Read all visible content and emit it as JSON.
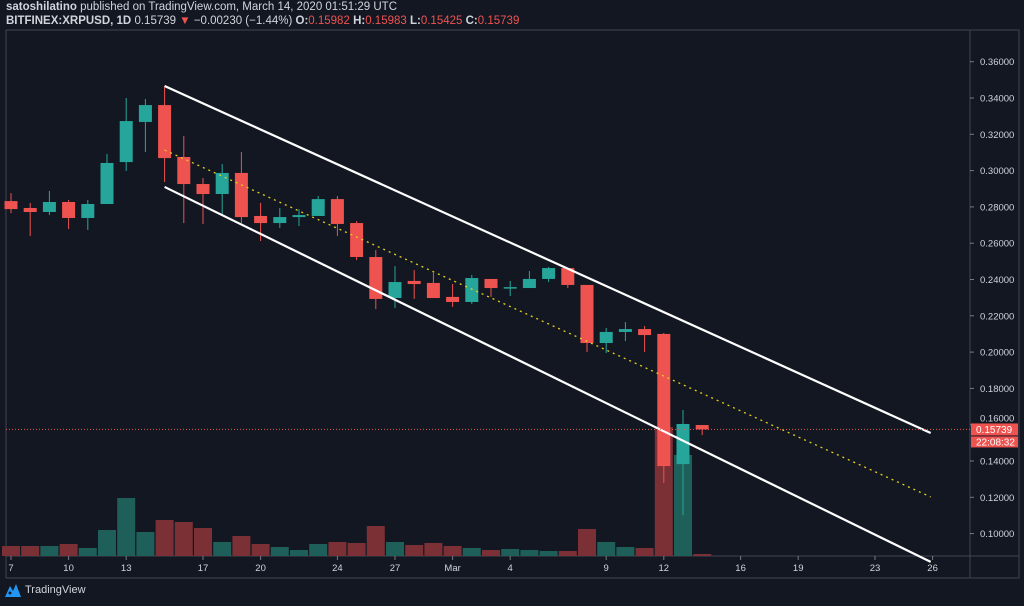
{
  "header": {
    "author": "satoshilatino",
    "published_text": "published on TradingView.com, March 14, 2020 01:51:29 UTC",
    "symbol": "BITFINEX:XRPUSD, 1D",
    "last": "0.15739",
    "change_arrow": "down-triangle-icon",
    "change": "−0.00230 (−1.44%)",
    "o_label": "O:",
    "o": "0.15982",
    "h_label": "H:",
    "h": "0.15983",
    "l_label": "L:",
    "l": "0.15425",
    "c_label": "C:",
    "c": "0.15739"
  },
  "price_label": "0.15739",
  "countdown": "22:08:32",
  "branding": "TradingView",
  "colors": {
    "background": "#131722",
    "up": "#26a69a",
    "down": "#ef5350",
    "up_volume": "#1f5f5a",
    "down_volume": "#7a3035",
    "channel": "#ffffff",
    "midline": "#e5d11a",
    "price_line": "#ef5350"
  },
  "chart_data": {
    "type": "candlestick",
    "title": "",
    "y_ticks": [
      "0.36000",
      "0.34000",
      "0.32000",
      "0.30000",
      "0.28000",
      "0.26000",
      "0.24000",
      "0.22000",
      "0.20000",
      "0.18000",
      "0.16000",
      "0.14000",
      "0.12000",
      "0.10000"
    ],
    "ylim": [
      0.085,
      0.375
    ],
    "x_ticks": [
      {
        "day": 0,
        "label": "7"
      },
      {
        "day": 3,
        "label": "10"
      },
      {
        "day": 6,
        "label": "13"
      },
      {
        "day": 10,
        "label": "17"
      },
      {
        "day": 13,
        "label": "20"
      },
      {
        "day": 17,
        "label": "24"
      },
      {
        "day": 20,
        "label": "27"
      },
      {
        "day": 23,
        "label": "Mar"
      },
      {
        "day": 26,
        "label": "4"
      },
      {
        "day": 31,
        "label": "9"
      },
      {
        "day": 34,
        "label": "12"
      },
      {
        "day": 38,
        "label": "16"
      },
      {
        "day": 41,
        "label": "19"
      },
      {
        "day": 45,
        "label": "23"
      },
      {
        "day": 48,
        "label": "26"
      }
    ],
    "x_start_date": "2020-02-07",
    "candles": [
      {
        "date": "Feb 7",
        "o": 0.2832,
        "h": 0.2876,
        "l": 0.2766,
        "c": 0.2788,
        "v": 10
      },
      {
        "date": "Feb 8",
        "o": 0.2794,
        "h": 0.2822,
        "l": 0.264,
        "c": 0.2772,
        "v": 10
      },
      {
        "date": "Feb 9",
        "o": 0.2772,
        "h": 0.2888,
        "l": 0.2755,
        "c": 0.2827,
        "v": 10
      },
      {
        "date": "Feb 10",
        "o": 0.2827,
        "h": 0.2838,
        "l": 0.2678,
        "c": 0.2739,
        "v": 12
      },
      {
        "date": "Feb 11",
        "o": 0.2739,
        "h": 0.2838,
        "l": 0.2673,
        "c": 0.2816,
        "v": 8
      },
      {
        "date": "Feb 12",
        "o": 0.2816,
        "h": 0.3092,
        "l": 0.2816,
        "c": 0.3042,
        "v": 26
      },
      {
        "date": "Feb 13",
        "o": 0.3047,
        "h": 0.34,
        "l": 0.2998,
        "c": 0.3273,
        "v": 58
      },
      {
        "date": "Feb 14",
        "o": 0.3268,
        "h": 0.3394,
        "l": 0.3102,
        "c": 0.3361,
        "v": 24
      },
      {
        "date": "Feb 15",
        "o": 0.3361,
        "h": 0.3466,
        "l": 0.2937,
        "c": 0.3069,
        "v": 36
      },
      {
        "date": "Feb 16",
        "o": 0.3075,
        "h": 0.3191,
        "l": 0.2711,
        "c": 0.2926,
        "v": 34
      },
      {
        "date": "Feb 17",
        "o": 0.2926,
        "h": 0.2959,
        "l": 0.2706,
        "c": 0.2871,
        "v": 28
      },
      {
        "date": "Feb 18",
        "o": 0.2871,
        "h": 0.3036,
        "l": 0.2761,
        "c": 0.2987,
        "v": 14
      },
      {
        "date": "Feb 19",
        "o": 0.2987,
        "h": 0.3102,
        "l": 0.2711,
        "c": 0.2744,
        "v": 20
      },
      {
        "date": "Feb 20",
        "o": 0.275,
        "h": 0.2822,
        "l": 0.2612,
        "c": 0.2711,
        "v": 12
      },
      {
        "date": "Feb 21",
        "o": 0.2711,
        "h": 0.2794,
        "l": 0.2684,
        "c": 0.2744,
        "v": 9
      },
      {
        "date": "Feb 22",
        "o": 0.2744,
        "h": 0.2788,
        "l": 0.2695,
        "c": 0.2755,
        "v": 6
      },
      {
        "date": "Feb 23",
        "o": 0.275,
        "h": 0.286,
        "l": 0.275,
        "c": 0.2843,
        "v": 12
      },
      {
        "date": "Feb 24",
        "o": 0.2843,
        "h": 0.286,
        "l": 0.264,
        "c": 0.2706,
        "v": 14
      },
      {
        "date": "Feb 25",
        "o": 0.2711,
        "h": 0.2722,
        "l": 0.2507,
        "c": 0.2524,
        "v": 13
      },
      {
        "date": "Feb 26",
        "o": 0.2524,
        "h": 0.2562,
        "l": 0.2237,
        "c": 0.2293,
        "v": 30
      },
      {
        "date": "Feb 27",
        "o": 0.2298,
        "h": 0.2474,
        "l": 0.2243,
        "c": 0.2386,
        "v": 14
      },
      {
        "date": "Feb 28",
        "o": 0.2392,
        "h": 0.2452,
        "l": 0.2293,
        "c": 0.2375,
        "v": 11
      },
      {
        "date": "Feb 29",
        "o": 0.2381,
        "h": 0.2436,
        "l": 0.2298,
        "c": 0.2298,
        "v": 13
      },
      {
        "date": "Mar 1",
        "o": 0.2304,
        "h": 0.2375,
        "l": 0.2249,
        "c": 0.2276,
        "v": 10
      },
      {
        "date": "Mar 2",
        "o": 0.2276,
        "h": 0.2425,
        "l": 0.2265,
        "c": 0.2408,
        "v": 8
      },
      {
        "date": "Mar 3",
        "o": 0.2403,
        "h": 0.2403,
        "l": 0.2304,
        "c": 0.2353,
        "v": 6
      },
      {
        "date": "Mar 4",
        "o": 0.2353,
        "h": 0.2392,
        "l": 0.2309,
        "c": 0.2358,
        "v": 7
      },
      {
        "date": "Mar 5",
        "o": 0.2353,
        "h": 0.2447,
        "l": 0.2353,
        "c": 0.2403,
        "v": 6
      },
      {
        "date": "Mar 6",
        "o": 0.2403,
        "h": 0.2469,
        "l": 0.2386,
        "c": 0.2463,
        "v": 5
      },
      {
        "date": "Mar 7",
        "o": 0.2463,
        "h": 0.2463,
        "l": 0.2353,
        "c": 0.237,
        "v": 5
      },
      {
        "date": "Mar 8",
        "o": 0.237,
        "h": 0.237,
        "l": 0.2,
        "c": 0.205,
        "v": 27
      },
      {
        "date": "Mar 9",
        "o": 0.205,
        "h": 0.2133,
        "l": 0.1995,
        "c": 0.2111,
        "v": 14
      },
      {
        "date": "Mar 10",
        "o": 0.2111,
        "h": 0.2166,
        "l": 0.2061,
        "c": 0.2127,
        "v": 9
      },
      {
        "date": "Mar 11",
        "o": 0.2127,
        "h": 0.2144,
        "l": 0.2,
        "c": 0.2094,
        "v": 8
      },
      {
        "date": "Mar 12",
        "o": 0.21,
        "h": 0.2105,
        "l": 0.1279,
        "c": 0.1372,
        "v": 129
      },
      {
        "date": "Mar 13",
        "o": 0.1383,
        "h": 0.1681,
        "l": 0.1102,
        "c": 0.1604,
        "v": 101
      },
      {
        "date": "Mar 14",
        "o": 0.15982,
        "h": 0.15983,
        "l": 0.15425,
        "c": 0.15739,
        "v": 2
      }
    ],
    "drawings": [
      {
        "name": "upper-channel",
        "style": "solid",
        "from": {
          "day": 8,
          "price": 0.3466
        },
        "to": {
          "day": 47.9,
          "price": 0.1554
        }
      },
      {
        "name": "lower-channel",
        "style": "solid",
        "from": {
          "day": 8,
          "price": 0.291
        },
        "to": {
          "day": 47.9,
          "price": 0.0844
        }
      },
      {
        "name": "midline",
        "style": "dotted",
        "from": {
          "day": 8,
          "price": 0.3113
        },
        "to": {
          "day": 47.9,
          "price": 0.1202
        }
      }
    ],
    "current_price": 0.15739,
    "grid": false
  }
}
